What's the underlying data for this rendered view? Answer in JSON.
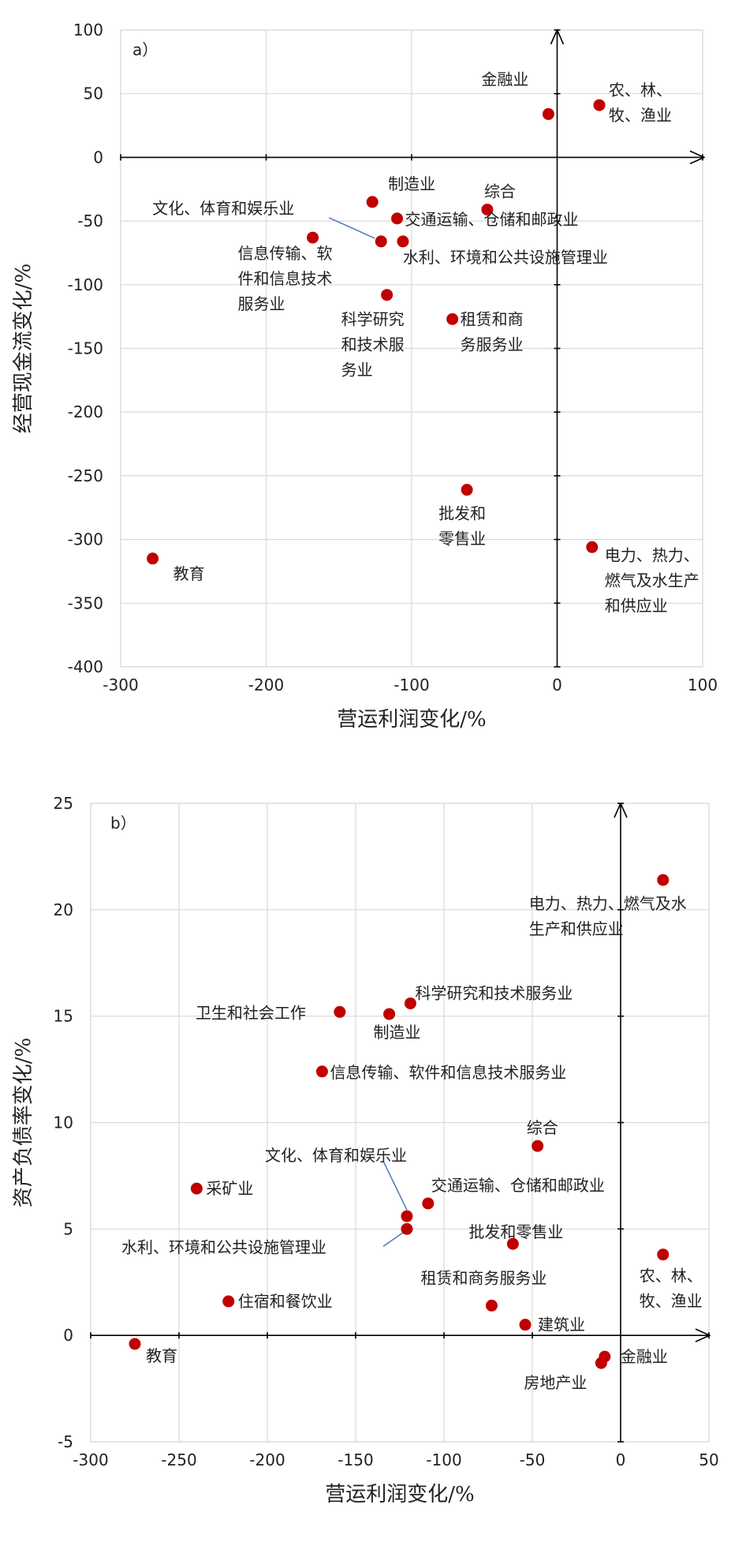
{
  "chart_data": [
    {
      "panel": "a）",
      "type": "scatter",
      "xlabel": "营运利润变化/%",
      "ylabel": "经营现金流变化/%",
      "xlim": [
        -300,
        100
      ],
      "ylim": [
        -400,
        100
      ],
      "xticks": [
        -300,
        -200,
        -100,
        0,
        100
      ],
      "yticks": [
        -400,
        -350,
        -300,
        -250,
        -200,
        -150,
        -100,
        -50,
        0,
        50,
        100
      ],
      "grid": true,
      "points": [
        {
          "label": [
            "金融业"
          ],
          "x": -6,
          "y": 34
        },
        {
          "label": [
            "农、林、",
            "牧、渔业"
          ],
          "x": 29,
          "y": 41
        },
        {
          "label": [
            "制造业"
          ],
          "x": -127,
          "y": -35
        },
        {
          "label": [
            "综合"
          ],
          "x": -48,
          "y": -41
        },
        {
          "label": [
            "交通运输、仓储和邮政业"
          ],
          "x": -110,
          "y": -48
        },
        {
          "label": [
            "信息传输、软",
            "件和信息技术",
            "服务业"
          ],
          "x": -168,
          "y": -63
        },
        {
          "label": [
            "文化、体育和娱乐业"
          ],
          "x": -121,
          "y": -66
        },
        {
          "label": [
            "水利、环境和公共设施管理业"
          ],
          "x": -106,
          "y": -66
        },
        {
          "label": [
            "科学研究",
            "和技术服",
            "务业"
          ],
          "x": -117,
          "y": -108
        },
        {
          "label": [
            "租赁和商",
            "务服务业"
          ],
          "x": -72,
          "y": -127
        },
        {
          "label": [
            "批发和",
            "零售业"
          ],
          "x": -62,
          "y": -261
        },
        {
          "label": [
            "电力、热力、",
            "燃气及水生产",
            "和供应业"
          ],
          "x": 24,
          "y": -306
        },
        {
          "label": [
            "教育"
          ],
          "x": -278,
          "y": -315
        }
      ]
    },
    {
      "panel": "b）",
      "type": "scatter",
      "xlabel": "营运利润变化/%",
      "ylabel": "资产负债率变化/%",
      "xlim": [
        -300,
        50
      ],
      "ylim": [
        -5,
        25
      ],
      "xticks": [
        -300,
        -250,
        -200,
        -150,
        -100,
        -50,
        0,
        50
      ],
      "yticks": [
        -5,
        0,
        5,
        10,
        15,
        20,
        25
      ],
      "grid": true,
      "points": [
        {
          "label": [
            "电力、热力、燃气及水",
            "生产和供应业"
          ],
          "x": 24,
          "y": 21.4
        },
        {
          "label": [
            "卫生和社会工作"
          ],
          "x": -159,
          "y": 15.2
        },
        {
          "label": [
            "科学研究和技术服务业"
          ],
          "x": -119,
          "y": 15.6
        },
        {
          "label": [
            "制造业"
          ],
          "x": -131,
          "y": 15.1
        },
        {
          "label": [
            "信息传输、软件和信息技术服务业"
          ],
          "x": -169,
          "y": 12.4
        },
        {
          "label": [
            "综合"
          ],
          "x": -47,
          "y": 8.9
        },
        {
          "label": [
            "采矿业"
          ],
          "x": -240,
          "y": 6.9
        },
        {
          "label": [
            "交通运输、仓储和邮政业"
          ],
          "x": -109,
          "y": 6.2
        },
        {
          "label": [
            "文化、体育和娱乐业"
          ],
          "x": -121,
          "y": 5.6
        },
        {
          "label": [
            "水利、环境和公共设施管理业"
          ],
          "x": -121,
          "y": 5.0
        },
        {
          "label": [
            "批发和零售业"
          ],
          "x": -61,
          "y": 4.3
        },
        {
          "label": [
            "农、林、",
            "牧、渔业"
          ],
          "x": 24,
          "y": 3.8
        },
        {
          "label": [
            "住宿和餐饮业"
          ],
          "x": -222,
          "y": 1.6
        },
        {
          "label": [
            "租赁和商务服务业"
          ],
          "x": -73,
          "y": 1.4
        },
        {
          "label": [
            "建筑业"
          ],
          "x": -54,
          "y": 0.5
        },
        {
          "label": [
            "教育"
          ],
          "x": -275,
          "y": -0.4
        },
        {
          "label": [
            "金融业"
          ],
          "x": -9,
          "y": -1.0
        },
        {
          "label": [
            "房地产业"
          ],
          "x": -11,
          "y": -1.3
        }
      ]
    }
  ]
}
